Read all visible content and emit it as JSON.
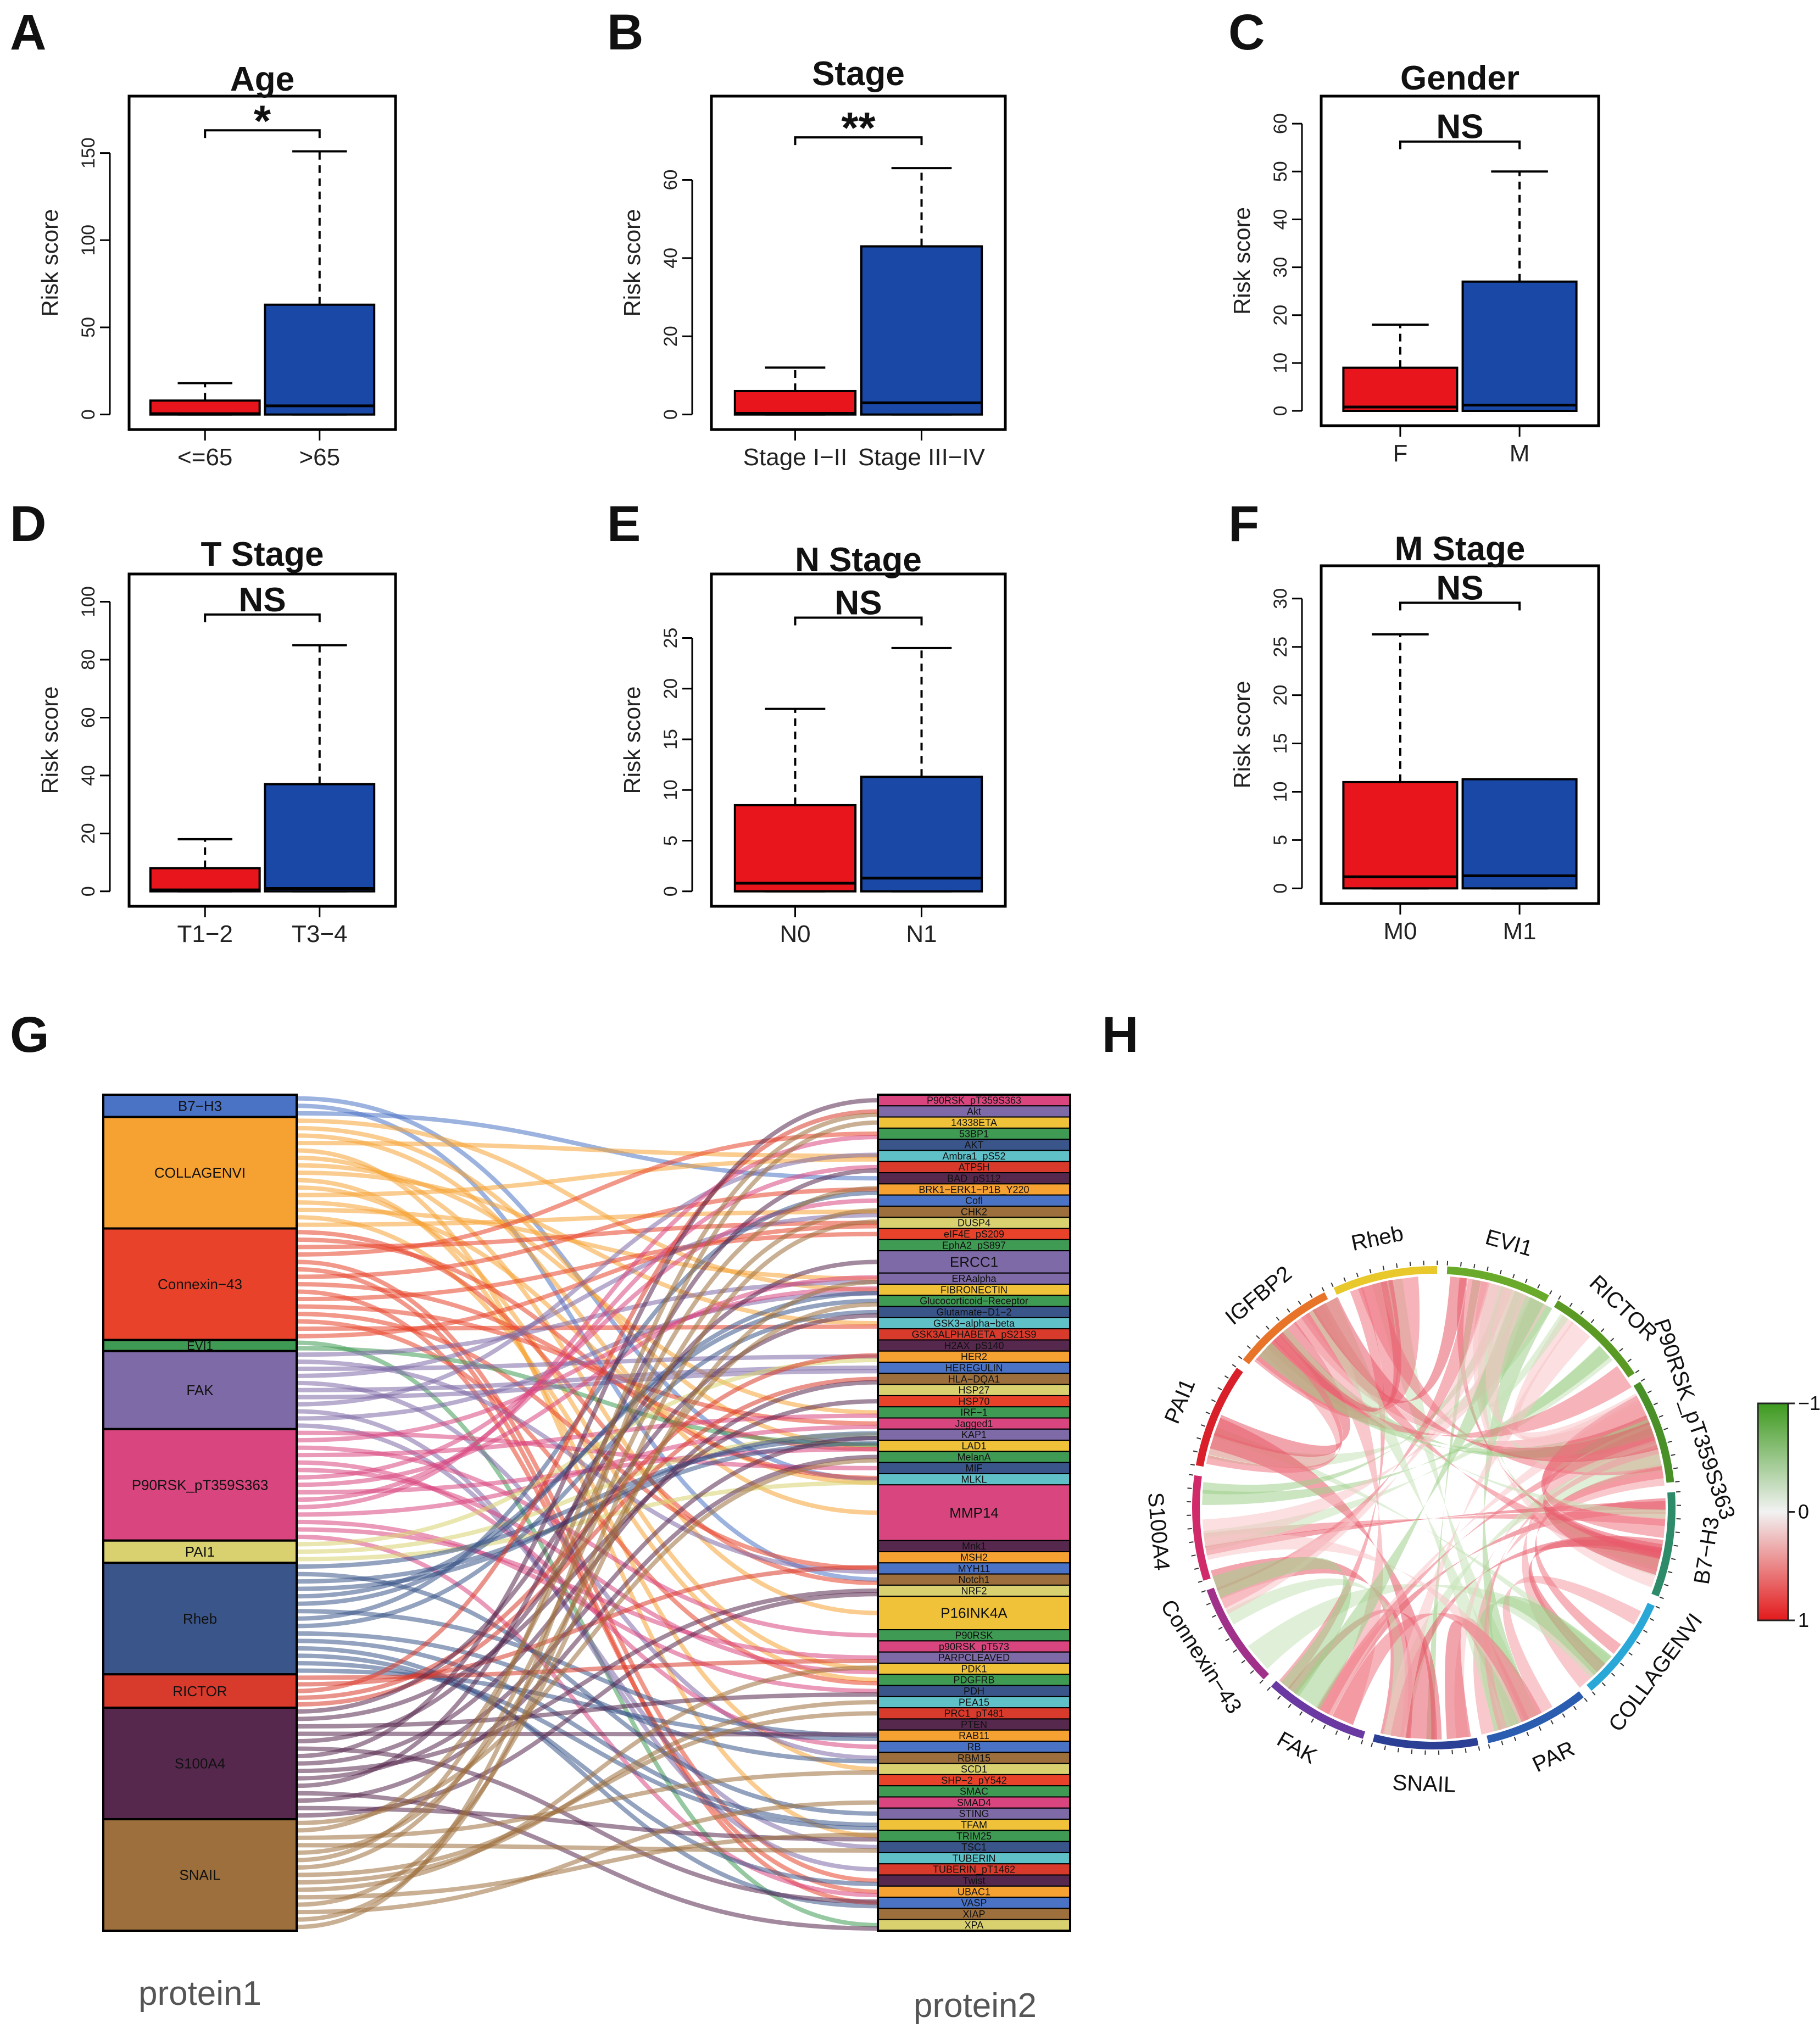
{
  "chart_data": [
    {
      "panel": "A",
      "type": "box",
      "title": "Age",
      "ylabel": "Risk score",
      "ylim": [
        0,
        175
      ],
      "yticks": [
        0,
        50,
        100,
        150
      ],
      "significance": "*",
      "groups": [
        {
          "label": "<=65",
          "min": 0,
          "q1": 0,
          "median": 0.5,
          "q3": 8,
          "max": 18,
          "color": "#e8161c"
        },
        {
          "label": ">65",
          "min": 0,
          "q1": 0,
          "median": 5,
          "q3": 63,
          "max": 151,
          "color": "#1a48a6"
        }
      ]
    },
    {
      "panel": "B",
      "type": "box",
      "title": "Stage",
      "ylabel": "Risk score",
      "ylim": [
        0,
        78
      ],
      "yticks": [
        0,
        20,
        40,
        60
      ],
      "significance": "**",
      "groups": [
        {
          "label": "Stage I−II",
          "min": 0,
          "q1": 0,
          "median": 0.3,
          "q3": 6,
          "max": 12,
          "color": "#e8161c"
        },
        {
          "label": "Stage III−IV",
          "min": 0,
          "q1": 0,
          "median": 3,
          "q3": 43,
          "max": 63,
          "color": "#1a48a6"
        }
      ]
    },
    {
      "panel": "C",
      "type": "box",
      "title": "Gender",
      "ylabel": "Risk score",
      "ylim": [
        0,
        63
      ],
      "yticks": [
        0,
        10,
        20,
        30,
        40,
        50,
        60
      ],
      "significance": "NS",
      "groups": [
        {
          "label": "F",
          "min": 0,
          "q1": 0,
          "median": 0.8,
          "q3": 9,
          "max": 18,
          "color": "#e8161c"
        },
        {
          "label": "M",
          "min": 0,
          "q1": 0,
          "median": 1.2,
          "q3": 27,
          "max": 50,
          "color": "#1a48a6"
        }
      ]
    },
    {
      "panel": "D",
      "type": "box",
      "title": "T Stage",
      "ylabel": "Risk score",
      "ylim": [
        0,
        105
      ],
      "yticks": [
        0,
        20,
        40,
        60,
        80,
        100
      ],
      "significance": "NS",
      "groups": [
        {
          "label": "T1−2",
          "min": 0,
          "q1": 0,
          "median": 0.5,
          "q3": 8,
          "max": 18,
          "color": "#e8161c"
        },
        {
          "label": "T3−4",
          "min": 0,
          "q1": 0,
          "median": 1,
          "q3": 37,
          "max": 85,
          "color": "#1a48a6"
        }
      ]
    },
    {
      "panel": "E",
      "type": "box",
      "title": "N Stage",
      "ylabel": "Risk score",
      "ylim": [
        0,
        30
      ],
      "yticks": [
        0,
        5,
        10,
        15,
        20,
        25
      ],
      "significance": "NS",
      "groups": [
        {
          "label": "N0",
          "min": 0,
          "q1": 0,
          "median": 0.8,
          "q3": 8.5,
          "max": 18,
          "color": "#e8161c"
        },
        {
          "label": "N1",
          "min": 0,
          "q1": 0,
          "median": 1.3,
          "q3": 11.3,
          "max": 24,
          "color": "#1a48a6"
        }
      ]
    },
    {
      "panel": "F",
      "type": "box",
      "title": "M Stage",
      "ylabel": "Risk score",
      "ylim": [
        0,
        32
      ],
      "yticks": [
        0,
        5,
        10,
        15,
        20,
        25,
        30
      ],
      "significance": "NS",
      "groups": [
        {
          "label": "M0",
          "min": 0,
          "q1": 0,
          "median": 1.2,
          "q3": 11,
          "max": 26.3,
          "color": "#e8161c"
        },
        {
          "label": "M1",
          "min": 0,
          "q1": 0,
          "median": 1.3,
          "q3": 11.3,
          "max": 11.3,
          "color": "#1a48a6"
        }
      ]
    },
    {
      "panel": "G",
      "type": "sankey",
      "left_axis_label": "protein1",
      "right_axis_label": "protein2",
      "left_nodes": [
        {
          "label": "B7−H3",
          "weight": 2,
          "color": "#4b73c5"
        },
        {
          "label": "COLLAGENVI",
          "weight": 10,
          "color": "#f6a233"
        },
        {
          "label": "Connexin−43",
          "weight": 10,
          "color": "#e8432a"
        },
        {
          "label": "EVI1",
          "weight": 1,
          "color": "#3f9a54"
        },
        {
          "label": "FAK",
          "weight": 7,
          "color": "#7d6aa6"
        },
        {
          "label": "P90RSK_pT359S363",
          "weight": 10,
          "color": "#d9467f"
        },
        {
          "label": "PAI1",
          "weight": 2,
          "color": "#d9d170"
        },
        {
          "label": "Rheb",
          "weight": 10,
          "color": "#3a5589"
        },
        {
          "label": "RICTOR",
          "weight": 3,
          "color": "#d83a2c"
        },
        {
          "label": "S100A4",
          "weight": 10,
          "color": "#57284e"
        },
        {
          "label": "SNAIL",
          "weight": 10,
          "color": "#9c6f3c"
        }
      ],
      "right_nodes": [
        {
          "label": "P90RSK_pT359S363",
          "weight": 1
        },
        {
          "label": "Akt",
          "weight": 1
        },
        {
          "label": "14338ETA",
          "weight": 1
        },
        {
          "label": "53BP1",
          "weight": 1
        },
        {
          "label": "AKT",
          "weight": 1
        },
        {
          "label": "Ambra1_pS52",
          "weight": 1
        },
        {
          "label": "ATP5H",
          "weight": 1
        },
        {
          "label": "BAD_pS112",
          "weight": 1
        },
        {
          "label": "BRK1−ERK1−P1B_Y220",
          "weight": 1
        },
        {
          "label": "Cofl",
          "weight": 1
        },
        {
          "label": "CHK2",
          "weight": 1
        },
        {
          "label": "DUSP4",
          "weight": 1
        },
        {
          "label": "eIF4E_pS209",
          "weight": 1
        },
        {
          "label": "EphA2_pS897",
          "weight": 1
        },
        {
          "label": "ERCC1",
          "weight": 2
        },
        {
          "label": "ERAalpha",
          "weight": 1
        },
        {
          "label": "FIBRONECTIN",
          "weight": 1
        },
        {
          "label": "Glucocorticoid−Receptor",
          "weight": 1
        },
        {
          "label": "Glutamate−D1−2",
          "weight": 1
        },
        {
          "label": "GSK3−alpha−beta",
          "weight": 1
        },
        {
          "label": "GSK3ALPHABETA_pS21S9",
          "weight": 1
        },
        {
          "label": "H2AX_pS140",
          "weight": 1
        },
        {
          "label": "HER2",
          "weight": 1
        },
        {
          "label": "HEREGULIN",
          "weight": 1
        },
        {
          "label": "HLA−DQA1",
          "weight": 1
        },
        {
          "label": "HSP27",
          "weight": 1
        },
        {
          "label": "HSP70",
          "weight": 1
        },
        {
          "label": "IRF−1",
          "weight": 1
        },
        {
          "label": "Jagged1",
          "weight": 1
        },
        {
          "label": "KAP1",
          "weight": 1
        },
        {
          "label": "LAD1",
          "weight": 1
        },
        {
          "label": "MelanA",
          "weight": 1
        },
        {
          "label": "MIF",
          "weight": 1
        },
        {
          "label": "MLKL",
          "weight": 1
        },
        {
          "label": "MMP14",
          "weight": 5
        },
        {
          "label": "Mnk1",
          "weight": 1
        },
        {
          "label": "MSH2",
          "weight": 1
        },
        {
          "label": "MYH11",
          "weight": 1
        },
        {
          "label": "Notch1",
          "weight": 1
        },
        {
          "label": "NRF2",
          "weight": 1
        },
        {
          "label": "P16INK4A",
          "weight": 3
        },
        {
          "label": "P90RSK",
          "weight": 1
        },
        {
          "label": "p90RSK_pT573",
          "weight": 1
        },
        {
          "label": "PARPCLEAVED",
          "weight": 1
        },
        {
          "label": "PDK1",
          "weight": 1
        },
        {
          "label": "PDGFRB",
          "weight": 1
        },
        {
          "label": "PDH",
          "weight": 1
        },
        {
          "label": "PEA15",
          "weight": 1
        },
        {
          "label": "PRC1_pT481",
          "weight": 1
        },
        {
          "label": "PTEN",
          "weight": 1
        },
        {
          "label": "RAB11",
          "weight": 1
        },
        {
          "label": "RB",
          "weight": 1
        },
        {
          "label": "RBM15",
          "weight": 1
        },
        {
          "label": "SCD1",
          "weight": 1
        },
        {
          "label": "SHP−2_pY542",
          "weight": 1
        },
        {
          "label": "SMAC",
          "weight": 1
        },
        {
          "label": "SMAD4",
          "weight": 1
        },
        {
          "label": "STING",
          "weight": 1
        },
        {
          "label": "TFAM",
          "weight": 1
        },
        {
          "label": "TRIM25",
          "weight": 1
        },
        {
          "label": "TSC1",
          "weight": 1
        },
        {
          "label": "TUBERIN",
          "weight": 1
        },
        {
          "label": "TUBERIN_pT1462",
          "weight": 1
        },
        {
          "label": "Twist",
          "weight": 1
        },
        {
          "label": "UBAC1",
          "weight": 1
        },
        {
          "label": "VASP",
          "weight": 1
        },
        {
          "label": "XIAP",
          "weight": 1
        },
        {
          "label": "XPA",
          "weight": 1
        }
      ]
    },
    {
      "panel": "H",
      "type": "chord",
      "sectors": [
        {
          "label": "EVI1",
          "color": "#6aaa2a"
        },
        {
          "label": "RICTOR",
          "color": "#5a9a24"
        },
        {
          "label": "P90RSK_pT359S363",
          "color": "#4a9028"
        },
        {
          "label": "B7−H3",
          "color": "#2e8b6a"
        },
        {
          "label": "COLLAGENVI",
          "color": "#29a8d8"
        },
        {
          "label": "PAR",
          "color": "#2a5db0"
        },
        {
          "label": "SNAIL",
          "color": "#2b3f94"
        },
        {
          "label": "FAK",
          "color": "#6a3aa2"
        },
        {
          "label": "Connexin−43",
          "color": "#a0308a"
        },
        {
          "label": "S100A4",
          "color": "#d12a6a"
        },
        {
          "label": "PAI1",
          "color": "#d81f2a"
        },
        {
          "label": "IGFBP2",
          "color": "#e8742a"
        },
        {
          "label": "Rheb",
          "color": "#e8c82a"
        }
      ],
      "colorbar": {
        "labels": [
          "−1",
          "0",
          "1"
        ],
        "colors": [
          "#3d9a1e",
          "#f2f2f2",
          "#e31a1c"
        ]
      }
    }
  ],
  "panel_letters": [
    "A",
    "B",
    "C",
    "D",
    "E",
    "F",
    "G",
    "H"
  ]
}
